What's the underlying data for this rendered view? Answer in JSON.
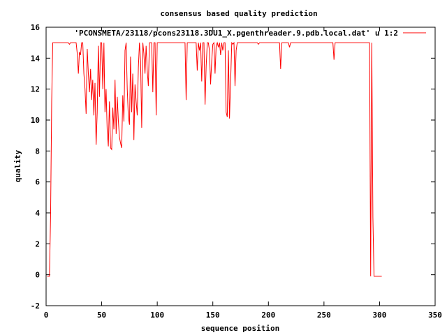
{
  "chart_data": {
    "type": "line",
    "title": "consensus based quality prediction",
    "xlabel": "sequence position",
    "ylabel": "quality",
    "xlim": [
      0,
      350
    ],
    "ylim": [
      -2,
      16
    ],
    "xticks": [
      0,
      50,
      100,
      150,
      200,
      250,
      300,
      350
    ],
    "yticks": [
      -2,
      0,
      2,
      4,
      6,
      8,
      10,
      12,
      14,
      16
    ],
    "grid": false,
    "legend_position": "top-right",
    "series": [
      {
        "name": "'PCONSMETA/23118/pcons23118.3DU1_X.pgenthreader.9.pdb.local.dat' u 1:2",
        "color": "#ff0000",
        "points": [
          [
            1,
            -0.1
          ],
          [
            2,
            -0.1
          ],
          [
            3,
            -0.1
          ],
          [
            4,
            3.7
          ],
          [
            5,
            11.2
          ],
          [
            6,
            15
          ],
          [
            10,
            15
          ],
          [
            15,
            15
          ],
          [
            20,
            15
          ],
          [
            21,
            14.9
          ],
          [
            22,
            15
          ],
          [
            25,
            15
          ],
          [
            27,
            15
          ],
          [
            28,
            14.3
          ],
          [
            29,
            13
          ],
          [
            30,
            14.4
          ],
          [
            31,
            14.2
          ],
          [
            32,
            15
          ],
          [
            33,
            15
          ],
          [
            34,
            13
          ],
          [
            35,
            12
          ],
          [
            36,
            10.4
          ],
          [
            37,
            14.6
          ],
          [
            38,
            13
          ],
          [
            39,
            11.8
          ],
          [
            40,
            13.3
          ],
          [
            41,
            11.3
          ],
          [
            42,
            12.6
          ],
          [
            43,
            10.3
          ],
          [
            44,
            12.4
          ],
          [
            45,
            8.4
          ],
          [
            46,
            10.5
          ],
          [
            47,
            14.8
          ],
          [
            48,
            11.5
          ],
          [
            49,
            15
          ],
          [
            50,
            15
          ],
          [
            51,
            12
          ],
          [
            52,
            15
          ],
          [
            53,
            10.5
          ],
          [
            54,
            12
          ],
          [
            55,
            9.3
          ],
          [
            56,
            8.3
          ],
          [
            57,
            11.2
          ],
          [
            58,
            8.2
          ],
          [
            59,
            8.1
          ],
          [
            60,
            10.8
          ],
          [
            61,
            9.4
          ],
          [
            62,
            12.6
          ],
          [
            63,
            9.1
          ],
          [
            64,
            11.5
          ],
          [
            65,
            10
          ],
          [
            66,
            8.9
          ],
          [
            67,
            8.5
          ],
          [
            68,
            8.2
          ],
          [
            69,
            11.6
          ],
          [
            70,
            9.9
          ],
          [
            71,
            14.5
          ],
          [
            72,
            15
          ],
          [
            73,
            12
          ],
          [
            74,
            10.2
          ],
          [
            75,
            9.7
          ],
          [
            76,
            14.1
          ],
          [
            77,
            10.5
          ],
          [
            78,
            13
          ],
          [
            79,
            8.7
          ],
          [
            80,
            12.3
          ],
          [
            81,
            11.2
          ],
          [
            82,
            10.3
          ],
          [
            83,
            13.4
          ],
          [
            84,
            15
          ],
          [
            85,
            13.8
          ],
          [
            86,
            9.5
          ],
          [
            87,
            15
          ],
          [
            88,
            14.3
          ],
          [
            89,
            13
          ],
          [
            90,
            14.8
          ],
          [
            91,
            13.2
          ],
          [
            92,
            12.2
          ],
          [
            93,
            15
          ],
          [
            95,
            15
          ],
          [
            96,
            11.8
          ],
          [
            97,
            15
          ],
          [
            98,
            15
          ],
          [
            99,
            10.3
          ],
          [
            100,
            15
          ],
          [
            110,
            15
          ],
          [
            120,
            15
          ],
          [
            125,
            15
          ],
          [
            126,
            11.3
          ],
          [
            127,
            15
          ],
          [
            135,
            15
          ],
          [
            136,
            13.2
          ],
          [
            137,
            15
          ],
          [
            138,
            14.5
          ],
          [
            139,
            15
          ],
          [
            140,
            12.5
          ],
          [
            141,
            15
          ],
          [
            142,
            15
          ],
          [
            143,
            11
          ],
          [
            144,
            13.5
          ],
          [
            145,
            15
          ],
          [
            146,
            15
          ],
          [
            147,
            14.5
          ],
          [
            148,
            12.3
          ],
          [
            149,
            13.8
          ],
          [
            150,
            14.9
          ],
          [
            151,
            15
          ],
          [
            152,
            13
          ],
          [
            153,
            14.8
          ],
          [
            154,
            15
          ],
          [
            155,
            14.7
          ],
          [
            156,
            15
          ],
          [
            157,
            14.2
          ],
          [
            158,
            15
          ],
          [
            159,
            14.5
          ],
          [
            160,
            15
          ],
          [
            161,
            15
          ],
          [
            162,
            10.5
          ],
          [
            163,
            10.2
          ],
          [
            164,
            14.5
          ],
          [
            165,
            10.1
          ],
          [
            166,
            12.5
          ],
          [
            167,
            15
          ],
          [
            168,
            14.9
          ],
          [
            169,
            15
          ],
          [
            170,
            12.2
          ],
          [
            171,
            14.5
          ],
          [
            172,
            15
          ],
          [
            175,
            15
          ],
          [
            180,
            15
          ],
          [
            185,
            15
          ],
          [
            190,
            15
          ],
          [
            191,
            14.9
          ],
          [
            192,
            15
          ],
          [
            200,
            15
          ],
          [
            210,
            15
          ],
          [
            211,
            13.3
          ],
          [
            212,
            15
          ],
          [
            218,
            15
          ],
          [
            219,
            14.7
          ],
          [
            220,
            15
          ],
          [
            230,
            15
          ],
          [
            240,
            15
          ],
          [
            250,
            15
          ],
          [
            258,
            15
          ],
          [
            259,
            13.9
          ],
          [
            260,
            15
          ],
          [
            270,
            15
          ],
          [
            280,
            15
          ],
          [
            290,
            15
          ],
          [
            291,
            15
          ],
          [
            292,
            -0.1
          ],
          [
            293,
            15
          ],
          [
            294,
            3.7
          ],
          [
            295,
            -0.1
          ],
          [
            300,
            -0.1
          ],
          [
            302,
            -0.1
          ]
        ]
      }
    ]
  }
}
